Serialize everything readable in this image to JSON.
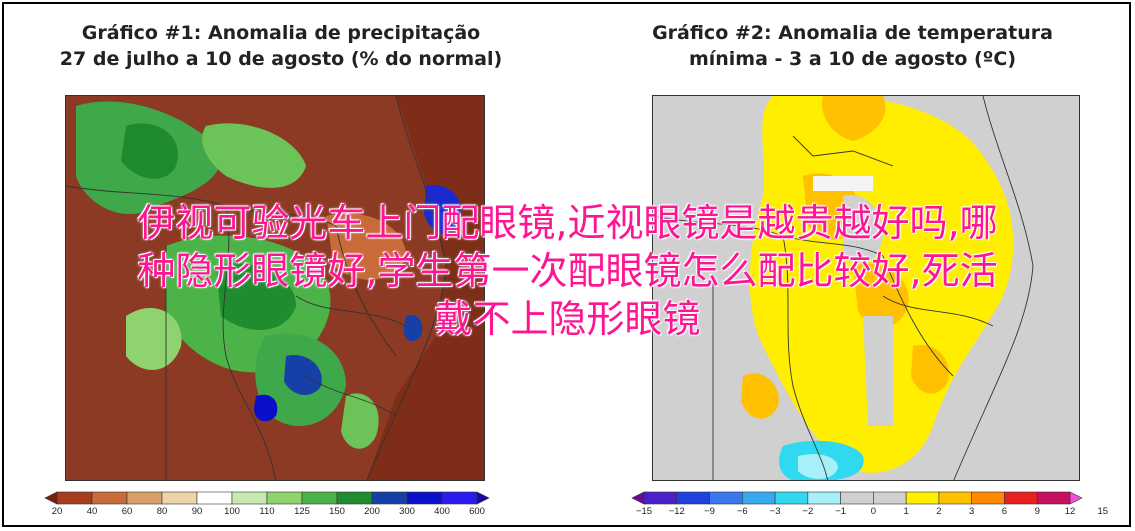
{
  "chart1": {
    "title_line1": "Gráfico #1: Anomalia de precipitação",
    "title_line2": "27 de julho a 10 de agosto (% do normal)",
    "colorbar": {
      "ticks": [
        "20",
        "40",
        "60",
        "80",
        "90",
        "100",
        "110",
        "125",
        "150",
        "200",
        "300",
        "400",
        "600"
      ],
      "colors": [
        "#7a1f12",
        "#a63d1f",
        "#c86a3a",
        "#dba06a",
        "#ecd4a8",
        "#ffffff",
        "#c8eab0",
        "#8fd36f",
        "#4bb348",
        "#1e8c2f",
        "#1640a8",
        "#0a10c8",
        "#2a1cf0",
        "#1a0aa0"
      ]
    }
  },
  "chart2": {
    "title_line1": "Gráfico #2: Anomalia de temperatura",
    "title_line2": "mínima - 3 a 10 de agosto (ºC)",
    "colorbar": {
      "ticks": [
        "−15",
        "−12",
        "−9",
        "−6",
        "−3",
        "−2",
        "−1",
        "0",
        "1",
        "2",
        "3",
        "6",
        "9",
        "12",
        "15"
      ],
      "colors": [
        "#6a0a9a",
        "#4a20c8",
        "#2040e0",
        "#3a78f0",
        "#3aaaf0",
        "#30d8f0",
        "#a8f0f8",
        "#d0d0d0",
        "#d0d0d0",
        "#ffee00",
        "#ffc000",
        "#ff8800",
        "#e82020",
        "#c81060",
        "#f050d8"
      ]
    }
  },
  "overlay": {
    "line1": "伊视可验光车上门配眼镜,近视眼镜是越贵越好吗,哪",
    "line2": "种隐形眼镜好,学生第一次配眼镜怎么配比较好,死活",
    "line3": "戴不上隐形眼镜"
  }
}
